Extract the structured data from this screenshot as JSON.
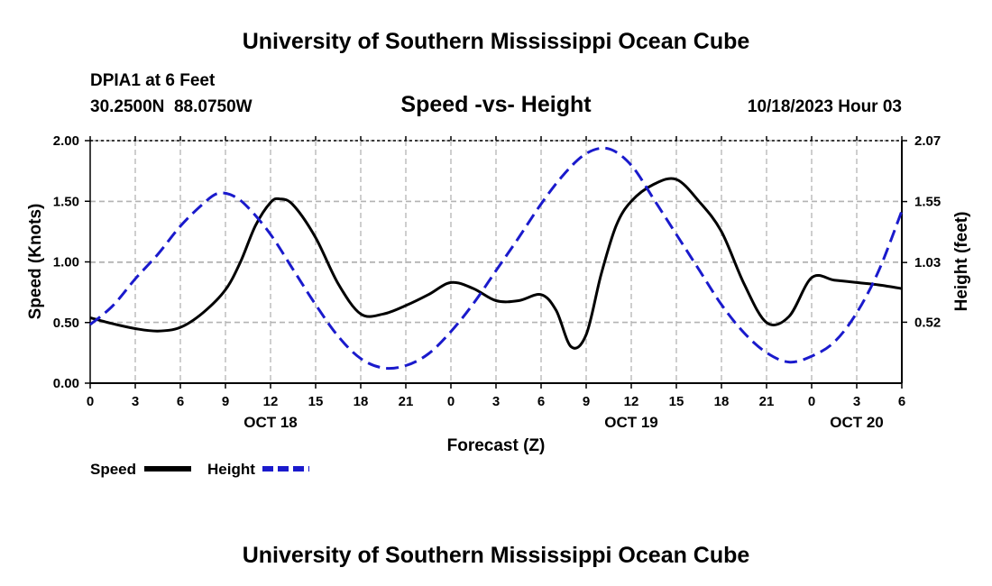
{
  "header": {
    "title": "University of Southern Mississippi Ocean Cube",
    "station": "DPIA1 at 6 Feet",
    "coords": "30.2500N  88.0750W",
    "subtitle": "Speed -vs- Height",
    "timestamp": "10/18/2023 Hour 03"
  },
  "footer": {
    "title": "University of Southern Mississippi Ocean Cube"
  },
  "colors": {
    "speed": "#000000",
    "height": "#1a1acc",
    "grid": "#b4b4b4"
  },
  "chart_data": {
    "type": "line",
    "xlabel": "Forecast (Z)",
    "ylabel": "Speed (Knots)",
    "y2label": "Height (feet)",
    "xlim": [
      0,
      54
    ],
    "ylim": [
      0,
      2
    ],
    "y2lim": [
      0,
      2.07
    ],
    "x_ticks": [
      0,
      3,
      6,
      9,
      12,
      15,
      18,
      21,
      24,
      27,
      30,
      33,
      36,
      39,
      42,
      45,
      48,
      51,
      54
    ],
    "x_tick_labels": [
      "0",
      "3",
      "6",
      "9",
      "12",
      "15",
      "18",
      "21",
      "0",
      "3",
      "6",
      "9",
      "12",
      "15",
      "18",
      "21",
      "0",
      "3",
      "6"
    ],
    "y_ticks": [
      0,
      0.5,
      1,
      1.5,
      2
    ],
    "y_tick_labels": [
      "0.00",
      "0.50",
      "1.00",
      "1.50",
      "2.00"
    ],
    "y2_ticks": [
      0.52,
      1.03,
      1.55,
      2.07
    ],
    "y2_tick_labels": [
      "0.52",
      "1.03",
      "1.55",
      "2.07"
    ],
    "date_labels": [
      {
        "x": 12,
        "label": "OCT 18"
      },
      {
        "x": 36,
        "label": "OCT 19"
      },
      {
        "x": 51,
        "label": "OCT 20"
      }
    ],
    "series": [
      {
        "name": "Speed",
        "axis": "left",
        "style": "solid",
        "x": [
          0,
          1.5,
          3,
          4.5,
          6,
          7.5,
          9,
          10,
          11,
          12,
          12.6,
          13.5,
          15,
          16.5,
          18,
          19.5,
          21,
          22.5,
          24,
          25.5,
          27,
          28.5,
          30,
          31,
          32,
          33,
          34,
          35,
          36,
          37.5,
          39,
          40.5,
          42,
          43.5,
          45,
          46.5,
          48,
          49.5,
          51,
          52.5,
          54
        ],
        "values": [
          0.54,
          0.49,
          0.45,
          0.43,
          0.46,
          0.58,
          0.77,
          1.0,
          1.3,
          1.49,
          1.52,
          1.47,
          1.2,
          0.82,
          0.57,
          0.57,
          0.64,
          0.73,
          0.83,
          0.78,
          0.68,
          0.68,
          0.73,
          0.6,
          0.3,
          0.4,
          0.9,
          1.3,
          1.5,
          1.64,
          1.68,
          1.5,
          1.25,
          0.82,
          0.5,
          0.55,
          0.87,
          0.85,
          0.83,
          0.81,
          0.78
        ]
      },
      {
        "name": "Height",
        "axis": "right",
        "style": "dashed",
        "x": [
          0,
          1.5,
          3,
          4.5,
          6,
          7.5,
          8.5,
          9.5,
          10.5,
          12,
          13.5,
          15,
          16.5,
          18,
          19.5,
          21,
          22.5,
          24,
          25.5,
          27,
          28.5,
          30,
          31.5,
          33,
          34.5,
          36,
          37.5,
          39,
          40.5,
          42,
          43.5,
          45,
          46.5,
          48,
          49.5,
          51,
          52.5,
          54
        ],
        "values": [
          0.5,
          0.66,
          0.89,
          1.1,
          1.34,
          1.53,
          1.62,
          1.6,
          1.5,
          1.27,
          0.97,
          0.67,
          0.4,
          0.21,
          0.13,
          0.15,
          0.25,
          0.44,
          0.68,
          0.96,
          1.24,
          1.53,
          1.78,
          1.96,
          2.0,
          1.86,
          1.57,
          1.27,
          0.97,
          0.67,
          0.43,
          0.26,
          0.18,
          0.23,
          0.35,
          0.6,
          0.97,
          1.47
        ]
      }
    ],
    "legend": [
      "Speed",
      "Height"
    ],
    "legend_position": "bottom-left",
    "grid": true
  }
}
